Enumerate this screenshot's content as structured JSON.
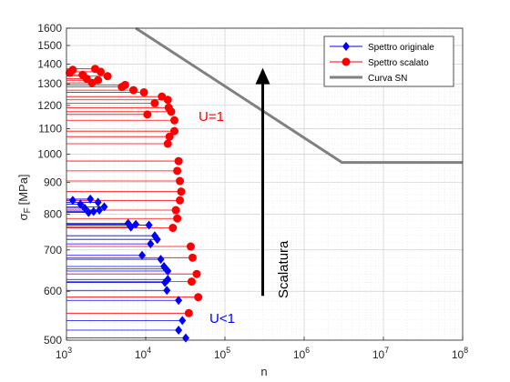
{
  "chart_data": {
    "type": "scatter",
    "xlabel": "n",
    "ylabel_main": "σ",
    "ylabel_sub": "F",
    "ylabel_unit": "[MPa]",
    "xscale": "log",
    "yscale": "log",
    "xlim": [
      1000,
      100000000
    ],
    "ylim": [
      500,
      1600
    ],
    "x_ticks": [
      {
        "v": 1000,
        "base": "10",
        "exp": "3"
      },
      {
        "v": 10000,
        "base": "10",
        "exp": "4"
      },
      {
        "v": 100000,
        "base": "10",
        "exp": "5"
      },
      {
        "v": 1000000,
        "base": "10",
        "exp": "6"
      },
      {
        "v": 10000000,
        "base": "10",
        "exp": "7"
      },
      {
        "v": 100000000,
        "base": "10",
        "exp": "8"
      }
    ],
    "y_ticks": [
      500,
      600,
      700,
      800,
      900,
      1000,
      1100,
      1200,
      1300,
      1400,
      1500,
      1600
    ],
    "y_tick_labels": [
      "500",
      "600",
      "700",
      "800",
      "900",
      "1000",
      "1100",
      "1200",
      "1300",
      "1400",
      "1500",
      "1600"
    ],
    "grid": "on",
    "legend_position": "top-right",
    "colors": {
      "original": "#0000FF",
      "scaled": "#FF0000",
      "sn": "#808080",
      "arrow": "#000000"
    },
    "series": [
      {
        "name": "Spettro originale",
        "marker": "diamond",
        "points": [
          [
            1200,
            842
          ],
          [
            2000,
            846
          ],
          [
            2500,
            836
          ],
          [
            1500,
            830
          ],
          [
            3000,
            822
          ],
          [
            1700,
            818
          ],
          [
            2600,
            812
          ],
          [
            2200,
            808
          ],
          [
            1900,
            805
          ],
          [
            6000,
            773
          ],
          [
            7500,
            770
          ],
          [
            11000,
            768
          ],
          [
            6500,
            762
          ],
          [
            13000,
            738
          ],
          [
            14000,
            728
          ],
          [
            11500,
            716
          ],
          [
            15500,
            676
          ],
          [
            17000,
            658
          ],
          [
            18000,
            652
          ],
          [
            19000,
            647
          ],
          [
            9000,
            686
          ],
          [
            19000,
            627
          ],
          [
            17500,
            620
          ],
          [
            18500,
            602
          ],
          [
            26000,
            580
          ],
          [
            29000,
            538
          ],
          [
            26000,
            519
          ],
          [
            32000,
            504
          ]
        ]
      },
      {
        "name": "Spettro scalato",
        "marker": "circle",
        "points": [
          [
            1200,
            1370
          ],
          [
            2300,
            1375
          ],
          [
            1100,
            1355
          ],
          [
            2700,
            1360
          ],
          [
            1600,
            1345
          ],
          [
            3300,
            1338
          ],
          [
            1800,
            1325
          ],
          [
            2500,
            1318
          ],
          [
            2100,
            1305
          ],
          [
            5500,
            1295
          ],
          [
            5000,
            1285
          ],
          [
            7000,
            1270
          ],
          [
            9500,
            1260
          ],
          [
            16000,
            1240
          ],
          [
            19000,
            1225
          ],
          [
            13000,
            1210
          ],
          [
            19500,
            1190
          ],
          [
            21000,
            1172
          ],
          [
            10500,
            1160
          ],
          [
            23000,
            1135
          ],
          [
            23000,
            1090
          ],
          [
            20000,
            1068
          ],
          [
            19000,
            1040
          ],
          [
            26000,
            975
          ],
          [
            25000,
            940
          ],
          [
            27000,
            905
          ],
          [
            28000,
            870
          ],
          [
            27000,
            842
          ],
          [
            24000,
            812
          ],
          [
            25000,
            787
          ],
          [
            22000,
            760
          ],
          [
            37000,
            709
          ],
          [
            39000,
            680
          ],
          [
            44000,
            640
          ],
          [
            38000,
            622
          ],
          [
            46000,
            587
          ],
          [
            35000,
            553
          ]
        ]
      },
      {
        "name": "Curva SN",
        "marker": "line",
        "points": [
          [
            7500,
            1600
          ],
          [
            3000000,
            970
          ],
          [
            100000000,
            970
          ]
        ]
      }
    ],
    "annotations": {
      "upper": "U=1",
      "lower": "U<1",
      "arrow": "Scalatura",
      "arrow_x": 300000,
      "arrow_from": 590,
      "arrow_to": 1380
    }
  }
}
